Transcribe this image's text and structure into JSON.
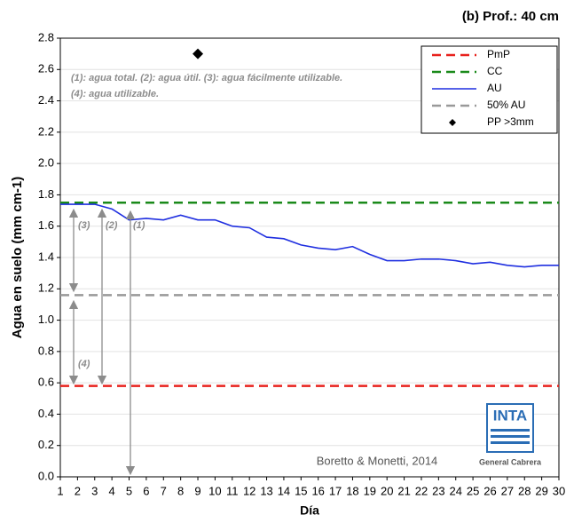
{
  "chart_data": {
    "type": "line",
    "title": "(b) Prof.: 40 cm",
    "x_label": "Día",
    "y_label": "Agua en suelo (mm cm-1)",
    "x": [
      1,
      2,
      3,
      4,
      5,
      6,
      7,
      8,
      9,
      10,
      11,
      12,
      13,
      14,
      15,
      16,
      17,
      18,
      19,
      20,
      21,
      22,
      23,
      24,
      25,
      26,
      27,
      28,
      29,
      30
    ],
    "xlim": [
      1,
      30
    ],
    "xticks": [
      1,
      2,
      3,
      4,
      5,
      6,
      7,
      8,
      9,
      10,
      11,
      12,
      13,
      14,
      15,
      16,
      17,
      18,
      19,
      20,
      21,
      22,
      23,
      24,
      25,
      26,
      27,
      28,
      29,
      30
    ],
    "ylim": [
      0,
      2.8
    ],
    "yticks": [
      {
        "value": 0,
        "label": "0.0"
      },
      0.2,
      0.4,
      0.6,
      0.8,
      {
        "value": 1,
        "label": "1.0"
      },
      1.2,
      1.4,
      1.6,
      1.8,
      {
        "value": 2,
        "label": "2.0"
      },
      2.2,
      2.4,
      2.6,
      2.8
    ],
    "grid": true,
    "legend": "top-right",
    "series": [
      {
        "name": "PmP",
        "color": "#e8221d",
        "style": "dashed",
        "values": [
          0.58,
          0.58,
          0.58,
          0.58,
          0.58,
          0.58,
          0.58,
          0.58,
          0.58,
          0.58,
          0.58,
          0.58,
          0.58,
          0.58,
          0.58,
          0.58,
          0.58,
          0.58,
          0.58,
          0.58,
          0.58,
          0.58,
          0.58,
          0.58,
          0.58,
          0.58,
          0.58,
          0.58,
          0.58,
          0.58
        ]
      },
      {
        "name": "CC",
        "color": "#1a8a1a",
        "style": "dashed",
        "values": [
          1.75,
          1.75,
          1.75,
          1.75,
          1.75,
          1.75,
          1.75,
          1.75,
          1.75,
          1.75,
          1.75,
          1.75,
          1.75,
          1.75,
          1.75,
          1.75,
          1.75,
          1.75,
          1.75,
          1.75,
          1.75,
          1.75,
          1.75,
          1.75,
          1.75,
          1.75,
          1.75,
          1.75,
          1.75,
          1.75
        ]
      },
      {
        "name": "AU",
        "color": "#1f2fe0",
        "style": "solid",
        "values": [
          1.74,
          1.74,
          1.74,
          1.71,
          1.64,
          1.65,
          1.64,
          1.67,
          1.64,
          1.64,
          1.6,
          1.59,
          1.53,
          1.52,
          1.48,
          1.46,
          1.45,
          1.47,
          1.42,
          1.38,
          1.38,
          1.39,
          1.39,
          1.38,
          1.36,
          1.37,
          1.35,
          1.34,
          1.35,
          1.35
        ]
      },
      {
        "name": "50% AU",
        "color": "#999999",
        "style": "dashed",
        "values": [
          1.16,
          1.16,
          1.16,
          1.16,
          1.16,
          1.16,
          1.16,
          1.16,
          1.16,
          1.16,
          1.16,
          1.16,
          1.16,
          1.16,
          1.16,
          1.16,
          1.16,
          1.16,
          1.16,
          1.16,
          1.16,
          1.16,
          1.16,
          1.16,
          1.16,
          1.16,
          1.16,
          1.16,
          1.16,
          1.16
        ]
      },
      {
        "name": "PP >3mm",
        "color": "#000000",
        "style": "marker",
        "values": [
          null,
          null,
          null,
          null,
          null,
          null,
          null,
          null,
          2.7,
          null,
          null,
          null,
          null,
          null,
          null,
          null,
          null,
          null,
          null,
          null,
          null,
          null,
          null,
          null,
          null,
          null,
          null,
          null,
          null,
          null
        ]
      }
    ],
    "annotations": [
      "(1): agua total.   (2): agua útil.   (3): agua fácilmente utilizable.",
      "(4): agua utilizable.",
      "(3)",
      "(2)",
      "(1)",
      "(4)"
    ],
    "credit": "Boretto & Monetti, 2014",
    "logo": "INTA",
    "logo_caption": "General Cabrera"
  }
}
